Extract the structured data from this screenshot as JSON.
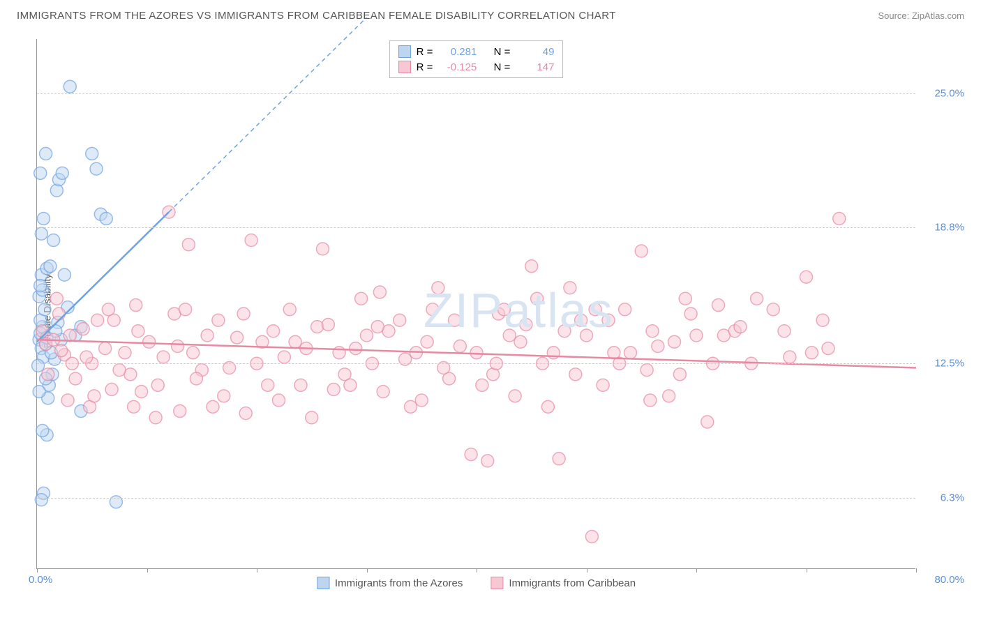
{
  "title": "IMMIGRANTS FROM THE AZORES VS IMMIGRANTS FROM CARIBBEAN FEMALE DISABILITY CORRELATION CHART",
  "source": "Source: ZipAtlas.com",
  "watermark": "ZIPatlas",
  "ylabel": "Female Disability",
  "chart": {
    "type": "scatter",
    "background_color": "#ffffff",
    "grid_color": "#cccccc",
    "xlim": [
      0,
      80
    ],
    "ylim": [
      3.0,
      27.5
    ],
    "x_ticks": [
      0,
      10,
      20,
      30,
      40,
      50,
      60,
      70,
      80
    ],
    "x_min_label": "0.0%",
    "x_max_label": "80.0%",
    "y_gridlines": [
      {
        "value": 6.3,
        "label": "6.3%"
      },
      {
        "value": 12.5,
        "label": "12.5%"
      },
      {
        "value": 18.8,
        "label": "18.8%"
      },
      {
        "value": 25.0,
        "label": "25.0%"
      }
    ],
    "y_tick_color": "#5b8fd6",
    "x_tick_color": "#5b8fd6",
    "marker_radius": 9,
    "marker_stroke_width": 1.5,
    "marker_fill_opacity": 0.25,
    "series": [
      {
        "name": "Immigrants from the Azores",
        "color": "#6fa3e0",
        "fill": "#bdd5ef",
        "R": "0.281",
        "N": "49",
        "trend": {
          "x1": 0,
          "y1": 13.5,
          "x2": 12,
          "y2": 19.5,
          "dash_ext_x": 30,
          "dash_ext_y": 28.5
        },
        "points": [
          [
            0.2,
            13.6
          ],
          [
            0.4,
            13.2
          ],
          [
            0.3,
            13.9
          ],
          [
            0.5,
            14.2
          ],
          [
            0.8,
            13.4
          ],
          [
            0.6,
            12.8
          ],
          [
            0.3,
            14.5
          ],
          [
            0.7,
            15.0
          ],
          [
            0.2,
            15.6
          ],
          [
            0.5,
            15.9
          ],
          [
            0.4,
            16.6
          ],
          [
            0.9,
            16.9
          ],
          [
            0.3,
            16.1
          ],
          [
            1.2,
            17.0
          ],
          [
            1.5,
            18.2
          ],
          [
            0.6,
            19.2
          ],
          [
            0.4,
            18.5
          ],
          [
            1.8,
            20.5
          ],
          [
            2.0,
            21.0
          ],
          [
            2.3,
            21.3
          ],
          [
            5.0,
            22.2
          ],
          [
            5.4,
            21.5
          ],
          [
            5.8,
            19.4
          ],
          [
            6.3,
            19.2
          ],
          [
            3.0,
            25.3
          ],
          [
            0.8,
            22.2
          ],
          [
            0.3,
            21.3
          ],
          [
            4.0,
            10.3
          ],
          [
            1.0,
            10.9
          ],
          [
            0.9,
            9.2
          ],
          [
            0.5,
            9.4
          ],
          [
            1.1,
            11.5
          ],
          [
            1.4,
            12.0
          ],
          [
            7.2,
            6.1
          ],
          [
            0.6,
            6.5
          ],
          [
            0.4,
            6.2
          ],
          [
            1.9,
            14.4
          ],
          [
            2.2,
            13.6
          ],
          [
            1.6,
            12.7
          ],
          [
            0.1,
            12.4
          ],
          [
            0.2,
            11.2
          ],
          [
            0.8,
            11.8
          ],
          [
            3.5,
            13.8
          ],
          [
            4.0,
            14.2
          ],
          [
            2.8,
            15.1
          ],
          [
            1.3,
            13.0
          ],
          [
            0.9,
            13.7
          ],
          [
            1.7,
            14.0
          ],
          [
            2.5,
            16.6
          ]
        ]
      },
      {
        "name": "Immigrants from Caribbean",
        "color": "#e68aa4",
        "fill": "#f7c8d4",
        "R": "-0.125",
        "N": "147",
        "trend": {
          "x1": 0,
          "y1": 13.6,
          "x2": 80,
          "y2": 12.3
        },
        "points": [
          [
            0.8,
            13.4
          ],
          [
            1.5,
            13.6
          ],
          [
            2.5,
            12.9
          ],
          [
            3.0,
            13.8
          ],
          [
            4.2,
            14.1
          ],
          [
            5.0,
            12.5
          ],
          [
            6.2,
            13.2
          ],
          [
            7.0,
            14.5
          ],
          [
            8.5,
            12.0
          ],
          [
            9.0,
            15.2
          ],
          [
            10.2,
            13.5
          ],
          [
            11.0,
            11.5
          ],
          [
            12.5,
            14.8
          ],
          [
            13.0,
            10.3
          ],
          [
            14.2,
            13.0
          ],
          [
            15.0,
            12.2
          ],
          [
            16.5,
            14.5
          ],
          [
            17.0,
            11.0
          ],
          [
            18.2,
            13.7
          ],
          [
            19.5,
            18.2
          ],
          [
            20.0,
            12.5
          ],
          [
            21.5,
            14.0
          ],
          [
            22.0,
            10.8
          ],
          [
            23.5,
            13.5
          ],
          [
            24.0,
            11.5
          ],
          [
            25.5,
            14.2
          ],
          [
            26.0,
            17.8
          ],
          [
            27.5,
            13.0
          ],
          [
            28.0,
            12.0
          ],
          [
            29.5,
            15.5
          ],
          [
            30.0,
            13.8
          ],
          [
            31.5,
            11.2
          ],
          [
            32.0,
            14.0
          ],
          [
            33.5,
            12.7
          ],
          [
            34.0,
            10.5
          ],
          [
            35.5,
            13.5
          ],
          [
            36.0,
            15.0
          ],
          [
            37.5,
            11.8
          ],
          [
            38.0,
            14.5
          ],
          [
            39.5,
            8.3
          ],
          [
            40.0,
            13.0
          ],
          [
            41.5,
            12.0
          ],
          [
            42.0,
            14.8
          ],
          [
            43.5,
            11.0
          ],
          [
            44.0,
            13.5
          ],
          [
            45.5,
            15.5
          ],
          [
            46.0,
            12.5
          ],
          [
            47.5,
            8.1
          ],
          [
            48.0,
            14.0
          ],
          [
            41.0,
            8.0
          ],
          [
            50.0,
            13.8
          ],
          [
            51.5,
            11.5
          ],
          [
            52.0,
            14.5
          ],
          [
            53.5,
            15.0
          ],
          [
            54.0,
            13.0
          ],
          [
            55.5,
            12.2
          ],
          [
            56.0,
            14.0
          ],
          [
            57.5,
            11.0
          ],
          [
            58.0,
            13.5
          ],
          [
            59.5,
            14.8
          ],
          [
            60.0,
            13.8
          ],
          [
            61.5,
            12.5
          ],
          [
            62.0,
            15.2
          ],
          [
            63.5,
            14.0
          ],
          [
            67.0,
            15.0
          ],
          [
            68.5,
            12.8
          ],
          [
            70.0,
            16.5
          ],
          [
            71.5,
            14.5
          ],
          [
            73.0,
            19.2
          ],
          [
            72.0,
            13.2
          ],
          [
            55.0,
            17.7
          ],
          [
            50.5,
            4.5
          ],
          [
            49.0,
            12.0
          ],
          [
            65.5,
            15.5
          ],
          [
            12.0,
            19.5
          ],
          [
            8.0,
            13.0
          ],
          [
            9.5,
            11.2
          ],
          [
            6.5,
            15.0
          ],
          [
            4.8,
            10.5
          ],
          [
            3.5,
            11.8
          ],
          [
            2.0,
            14.8
          ],
          [
            1.0,
            12.0
          ],
          [
            2.8,
            10.8
          ],
          [
            5.5,
            14.5
          ],
          [
            7.5,
            12.2
          ],
          [
            10.8,
            10.0
          ],
          [
            13.5,
            15.0
          ],
          [
            16.0,
            10.5
          ],
          [
            19.0,
            10.2
          ],
          [
            22.5,
            12.8
          ],
          [
            25.0,
            10.0
          ],
          [
            28.5,
            11.5
          ],
          [
            31.0,
            14.2
          ],
          [
            34.5,
            13.0
          ],
          [
            37.0,
            12.3
          ],
          [
            40.5,
            11.5
          ],
          [
            43.0,
            13.8
          ],
          [
            46.5,
            10.5
          ],
          [
            49.5,
            14.5
          ],
          [
            52.5,
            13.0
          ],
          [
            55.8,
            10.8
          ],
          [
            58.5,
            12.0
          ],
          [
            61.0,
            9.8
          ],
          [
            64.0,
            14.2
          ],
          [
            45.0,
            17.0
          ],
          [
            31.2,
            15.8
          ],
          [
            36.5,
            16.0
          ],
          [
            42.5,
            15.0
          ],
          [
            48.5,
            16.0
          ],
          [
            14.5,
            11.8
          ],
          [
            17.5,
            12.3
          ],
          [
            20.5,
            13.5
          ],
          [
            23.0,
            15.0
          ],
          [
            26.5,
            14.3
          ],
          [
            29.0,
            13.2
          ],
          [
            11.5,
            12.8
          ],
          [
            8.8,
            10.5
          ],
          [
            5.2,
            11.0
          ],
          [
            3.2,
            12.5
          ],
          [
            1.8,
            15.5
          ],
          [
            0.5,
            14.0
          ],
          [
            2.2,
            13.1
          ],
          [
            4.5,
            12.8
          ],
          [
            6.8,
            11.3
          ],
          [
            9.2,
            14.0
          ],
          [
            12.8,
            13.3
          ],
          [
            15.5,
            13.8
          ],
          [
            18.8,
            14.8
          ],
          [
            21.0,
            11.5
          ],
          [
            24.5,
            13.2
          ],
          [
            27.0,
            11.3
          ],
          [
            30.5,
            12.5
          ],
          [
            33.0,
            14.5
          ],
          [
            35.0,
            10.8
          ],
          [
            38.5,
            13.3
          ],
          [
            41.8,
            12.5
          ],
          [
            44.5,
            14.3
          ],
          [
            47.0,
            13.0
          ],
          [
            50.8,
            15.0
          ],
          [
            53.0,
            12.5
          ],
          [
            56.5,
            13.3
          ],
          [
            59.0,
            15.5
          ],
          [
            62.5,
            13.8
          ],
          [
            65.0,
            12.5
          ],
          [
            68.0,
            14.0
          ],
          [
            70.5,
            13.0
          ],
          [
            13.8,
            18.0
          ]
        ]
      }
    ]
  },
  "legend": {
    "series1_label": "Immigrants from the Azores",
    "series2_label": "Immigrants from Caribbean",
    "r_label": "R =",
    "n_label": "N ="
  }
}
